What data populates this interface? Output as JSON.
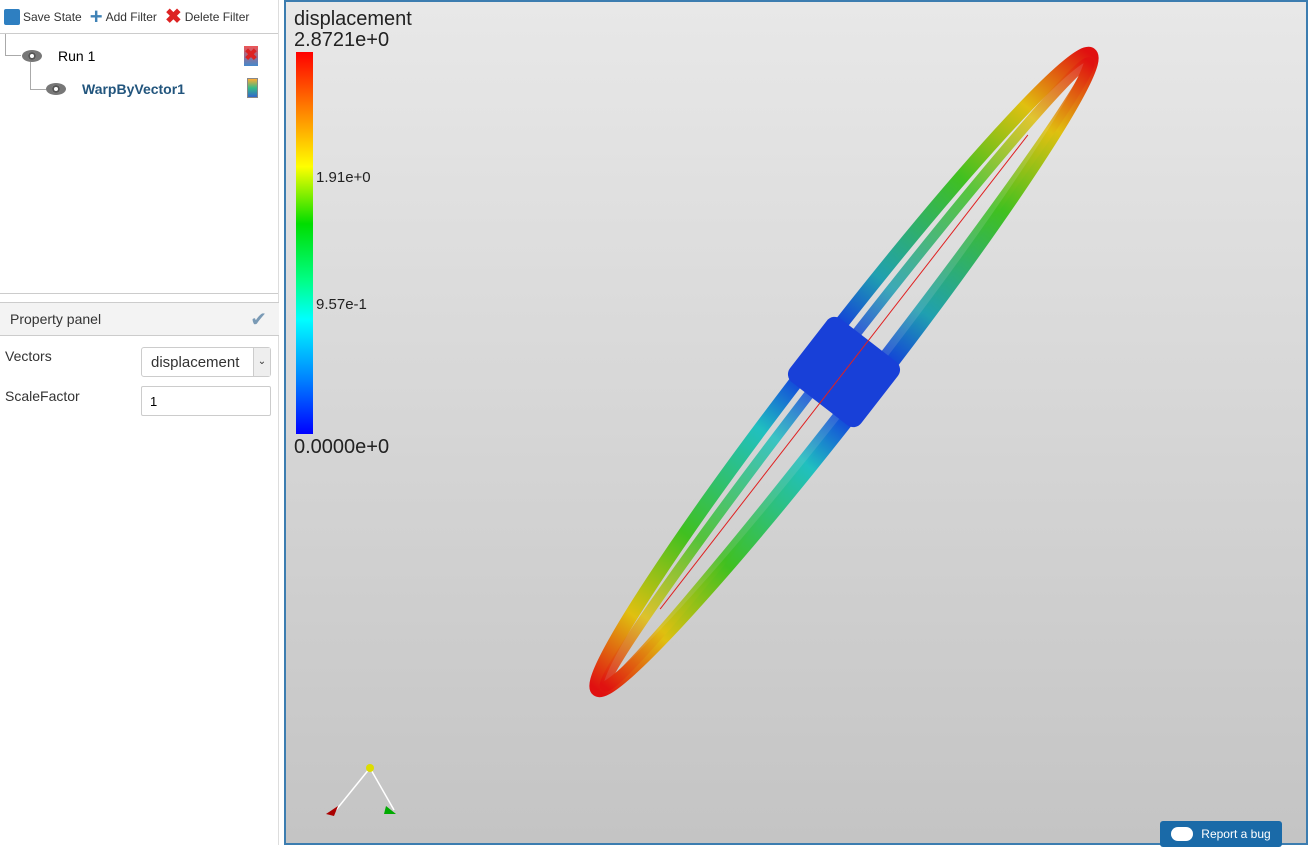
{
  "toolbar": {
    "save": "Save State",
    "add": "Add Filter",
    "delete": "Delete Filter"
  },
  "tree": [
    {
      "label": "Run 1"
    },
    {
      "label": "WarpByVector1"
    }
  ],
  "property_panel": {
    "title": "Property panel",
    "vectors_label": "Vectors",
    "vectors_value": "displacement",
    "scale_label": "ScaleFactor",
    "scale_value": "1"
  },
  "scalar_bar": {
    "title": "displacement",
    "max": "2.8721e+0",
    "mid1": "1.91e+0",
    "mid2": "9.57e-1",
    "min": "0.0000e+0"
  },
  "report": "Report a bug"
}
